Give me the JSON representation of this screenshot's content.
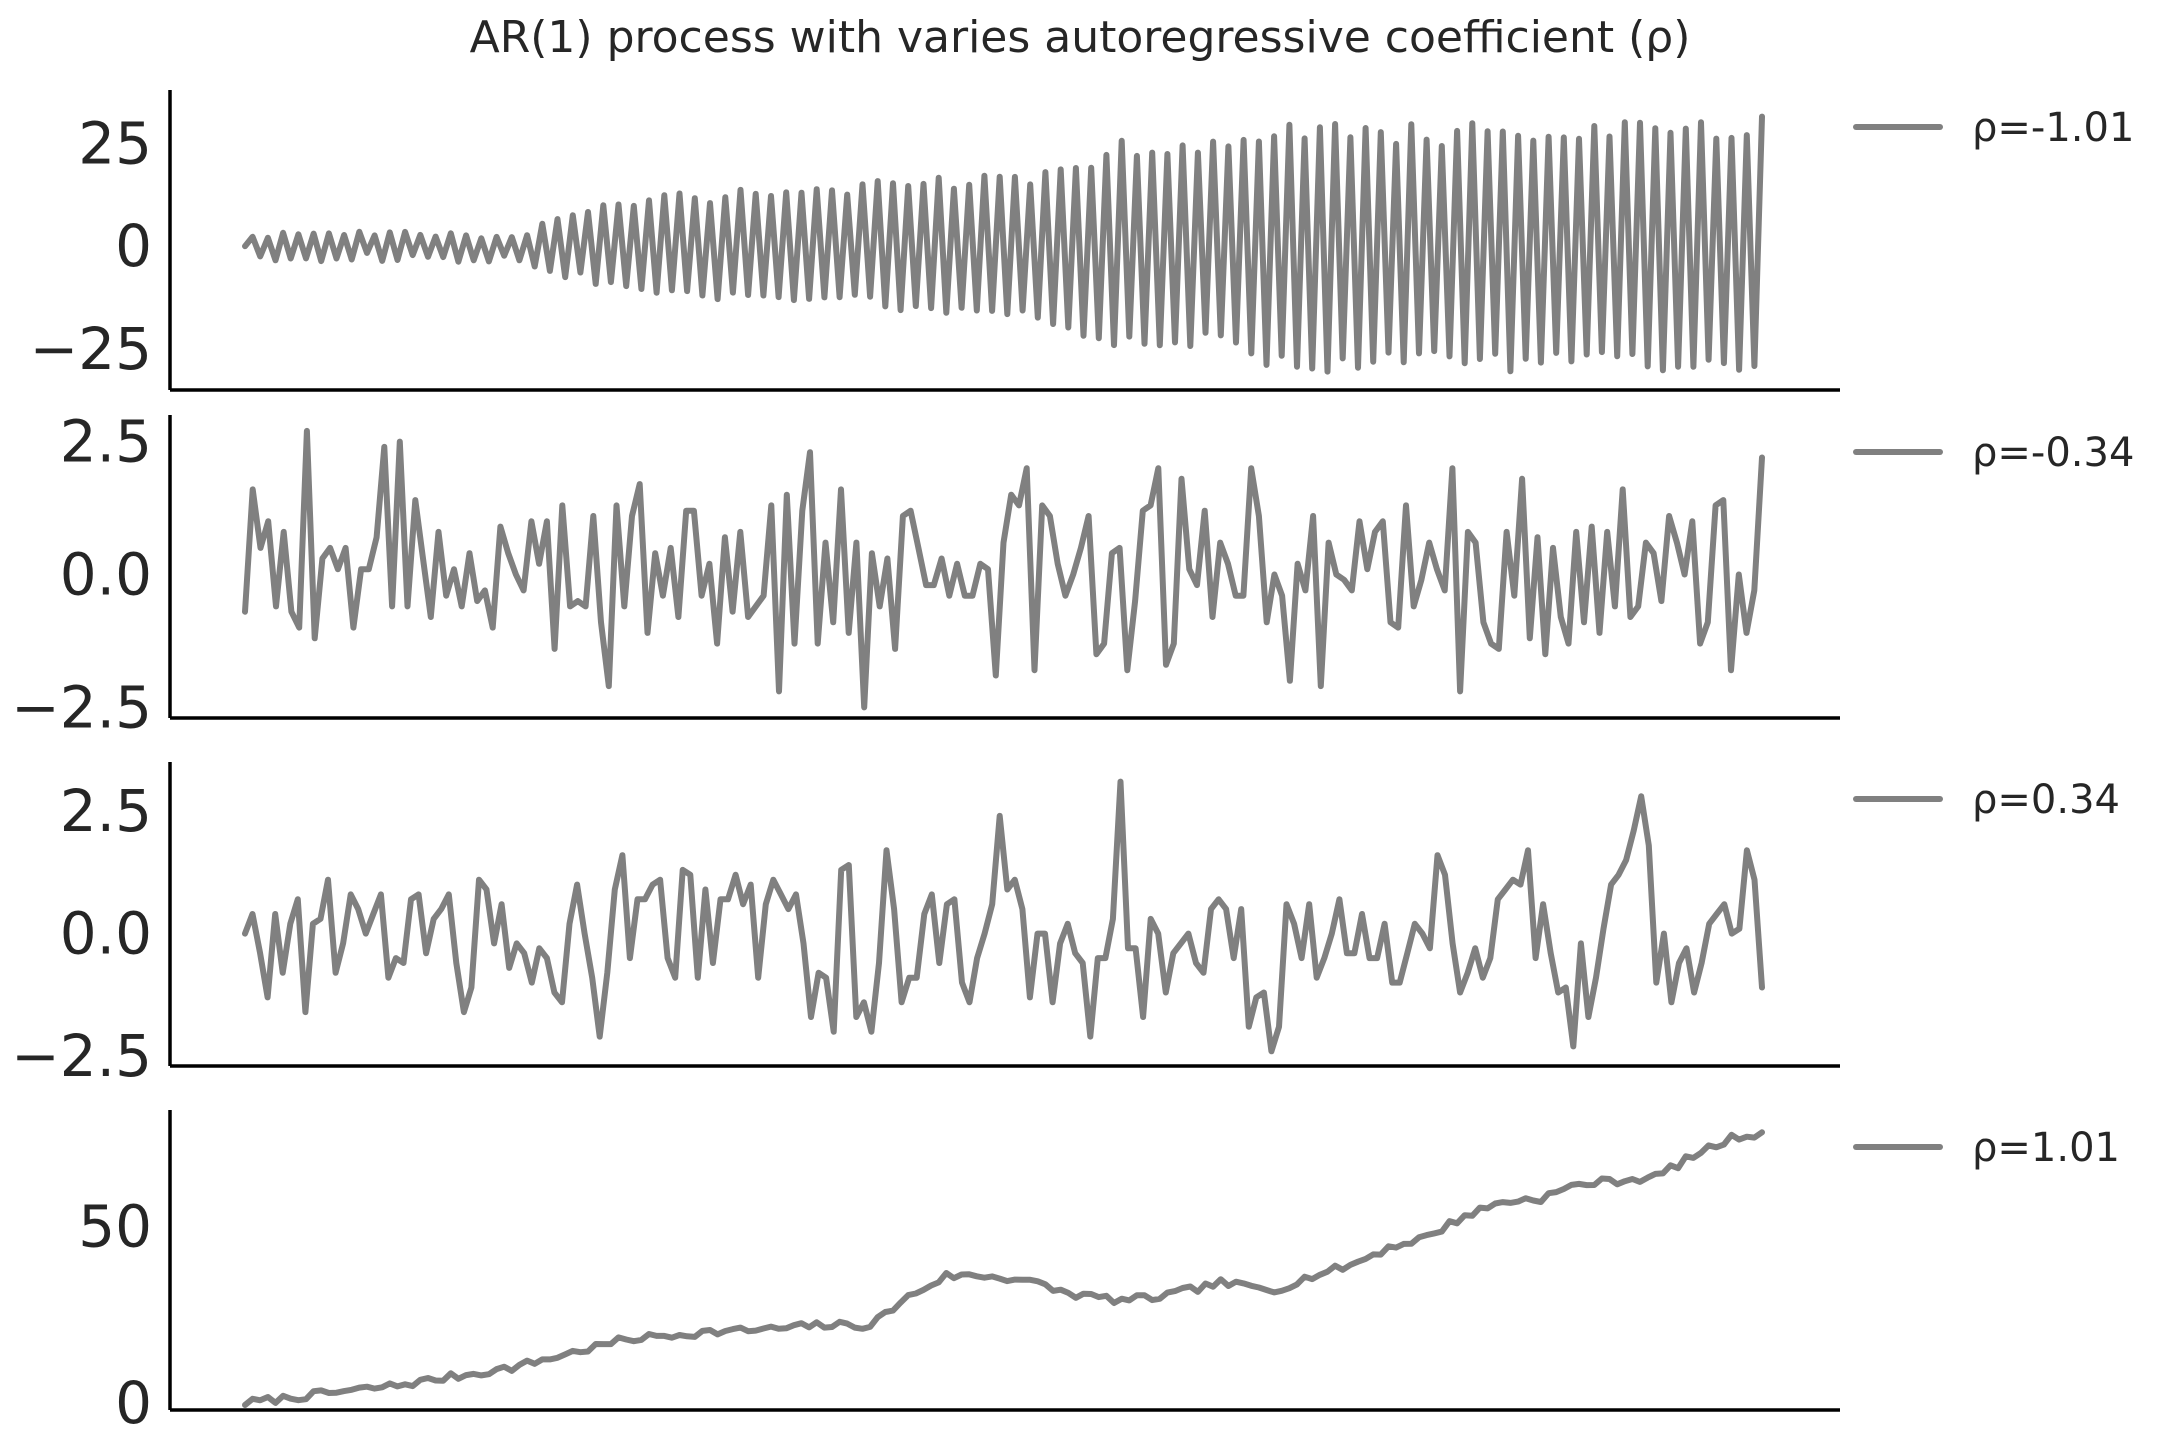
{
  "chart_data": {
    "title": "AR(1) process with varies autoregressive coefficient (ρ)",
    "type": "line",
    "line_color": "#808080",
    "grid": false,
    "legend_placement": "right of each panel",
    "panels": [
      {
        "rho": -1.01,
        "legend": "ρ=-1.01",
        "ylim": [
          -35,
          38
        ],
        "yticks": [
          25,
          0,
          -25
        ],
        "ytick_labels": [
          "25",
          "0",
          "−25"
        ],
        "envelope": [
          [
            0,
            3
          ],
          [
            20,
            3
          ],
          [
            35,
            3
          ],
          [
            38,
            6
          ],
          [
            45,
            10
          ],
          [
            55,
            13
          ],
          [
            75,
            14
          ],
          [
            82,
            16
          ],
          [
            100,
            19
          ],
          [
            110,
            25
          ],
          [
            120,
            25
          ],
          [
            125,
            28
          ],
          [
            135,
            31
          ],
          [
            150,
            29
          ],
          [
            155,
            30
          ],
          [
            165,
            29
          ],
          [
            175,
            30
          ],
          [
            181,
            31
          ],
          [
            190,
            31
          ]
        ],
        "noise_seed": 11
      },
      {
        "rho": -0.34,
        "legend": "ρ=-0.34",
        "ylim": [
          -2.7,
          3.0
        ],
        "yticks": [
          2.5,
          0.0,
          -2.5
        ],
        "ytick_labels": [
          "2.5",
          "0.0",
          "−2.5"
        ],
        "y": [
          -0.7,
          1.6,
          0.5,
          1.0,
          -0.6,
          0.8,
          -0.7,
          -1.0,
          2.7,
          -1.2,
          0.3,
          0.5,
          0.1,
          0.5,
          -1.0,
          0.1,
          0.1,
          0.7,
          2.4,
          -0.6,
          2.5,
          -0.6,
          1.4,
          0.3,
          -0.8,
          0.8,
          -0.4,
          0.1,
          -0.6,
          0.4,
          -0.5,
          -0.3,
          -1.0,
          0.9,
          0.4,
          0.0,
          -0.3,
          1.0,
          0.2,
          1.0,
          -1.4,
          1.3,
          -0.6,
          -0.5,
          -0.6,
          1.1,
          -0.9,
          -2.1,
          1.3,
          -0.6,
          1.1,
          1.7,
          -1.1,
          0.4,
          -0.4,
          0.5,
          -0.8,
          1.2,
          1.2,
          -0.4,
          0.2,
          -1.3,
          0.7,
          -0.7,
          0.8,
          -0.8,
          -0.6,
          -0.4,
          1.3,
          -2.2,
          1.5,
          -1.3,
          1.2,
          2.3,
          -1.3,
          0.6,
          -0.9,
          1.6,
          -1.1,
          0.6,
          -2.5,
          0.4,
          -0.6,
          0.3,
          -1.4,
          1.1,
          1.2,
          0.5,
          -0.2,
          -0.2,
          0.3,
          -0.4,
          0.2,
          -0.4,
          -0.4,
          0.2,
          0.1,
          -1.9,
          0.6,
          1.5,
          1.3,
          2.0,
          -1.8,
          1.3,
          1.1,
          0.2,
          -0.4,
          0.0,
          0.5,
          1.1,
          -1.5,
          -1.3,
          0.4,
          0.5,
          -1.8,
          -0.5,
          1.2,
          1.3,
          2.0,
          -1.7,
          -1.3,
          1.8,
          0.1,
          -0.2,
          1.2,
          -0.8,
          0.6,
          0.2,
          -0.4,
          -0.4,
          2.0,
          1.1,
          -0.9,
          0.0,
          -0.4,
          -2.0,
          0.2,
          -0.3,
          1.1,
          -2.1,
          0.6,
          0.0,
          -0.1,
          -0.3,
          1.0,
          0.1,
          0.8,
          1.0,
          -0.9,
          -1.0,
          1.3,
          -0.6,
          -0.1,
          0.6,
          0.1,
          -0.3,
          2.0,
          -2.2,
          0.8,
          0.6,
          -0.9,
          -1.3,
          -1.4,
          0.8,
          -0.4,
          1.8,
          -1.2,
          0.7,
          -1.5,
          0.5,
          -0.8,
          -1.3,
          0.8,
          -0.9,
          0.9,
          -1.1,
          0.8,
          -0.6,
          1.6,
          -0.8,
          -0.6,
          0.6,
          0.4,
          -0.5,
          1.1,
          0.6,
          0.0,
          1.0,
          -1.3,
          -0.9,
          1.3,
          1.4,
          -1.8,
          0.0,
          -1.1,
          -0.3,
          2.2
        ]
      },
      {
        "rho": 0.34,
        "legend": "ρ=0.34",
        "ylim": [
          -2.7,
          3.5
        ],
        "yticks": [
          2.5,
          0.0,
          -2.5
        ],
        "ytick_labels": [
          "2.5",
          "0.0",
          "−2.5"
        ],
        "y": [
          0.0,
          0.4,
          -0.4,
          -1.3,
          0.4,
          -0.8,
          0.2,
          0.7,
          -1.6,
          0.2,
          0.3,
          1.1,
          -0.8,
          -0.2,
          0.8,
          0.5,
          0.0,
          0.4,
          0.8,
          -0.9,
          -0.5,
          -0.6,
          0.7,
          0.8,
          -0.4,
          0.3,
          0.5,
          0.8,
          -0.6,
          -1.6,
          -1.1,
          1.1,
          0.9,
          -0.2,
          0.6,
          -0.7,
          -0.2,
          -0.4,
          -1.0,
          -0.3,
          -0.5,
          -1.2,
          -1.4,
          0.2,
          1.0,
          0.0,
          -0.9,
          -2.1,
          -0.8,
          0.9,
          1.6,
          -0.5,
          0.7,
          0.7,
          1.0,
          1.1,
          -0.5,
          -0.9,
          1.3,
          1.2,
          -0.9,
          0.9,
          -0.6,
          0.7,
          0.7,
          1.2,
          0.6,
          1.0,
          -0.9,
          0.6,
          1.1,
          0.8,
          0.5,
          0.8,
          -0.2,
          -1.7,
          -0.8,
          -0.9,
          -2.0,
          1.3,
          1.4,
          -1.7,
          -1.4,
          -2.0,
          -0.6,
          1.7,
          0.5,
          -1.4,
          -0.9,
          -0.9,
          0.4,
          0.8,
          -0.6,
          0.6,
          0.7,
          -1.0,
          -1.4,
          -0.5,
          0.0,
          0.6,
          2.4,
          0.9,
          1.1,
          0.5,
          -1.3,
          0.0,
          0.0,
          -1.4,
          -0.2,
          0.2,
          -0.4,
          -0.6,
          -2.1,
          -0.5,
          -0.5,
          0.3,
          3.1,
          -0.3,
          -0.3,
          -1.7,
          0.3,
          0.0,
          -1.2,
          -0.4,
          -0.2,
          0.0,
          -0.6,
          -0.8,
          0.5,
          0.7,
          0.5,
          -0.5,
          0.5,
          -1.9,
          -1.3,
          -1.2,
          -2.4,
          -1.9,
          0.6,
          0.2,
          -0.5,
          0.6,
          -0.9,
          -0.5,
          0.0,
          0.7,
          -0.4,
          -0.4,
          0.4,
          -0.5,
          -0.5,
          0.2,
          -1.0,
          -1.0,
          -0.4,
          0.2,
          0.0,
          -0.3,
          1.6,
          1.2,
          -0.2,
          -1.2,
          -0.8,
          -0.3,
          -0.9,
          -0.5,
          0.7,
          0.9,
          1.1,
          1.0,
          1.7,
          -0.5,
          0.6,
          -0.4,
          -1.2,
          -1.1,
          -2.3,
          -0.2,
          -1.7,
          -0.9,
          0.1,
          1.0,
          1.2,
          1.5,
          2.1,
          2.8,
          1.8,
          -1.0,
          0.0,
          -1.4,
          -0.6,
          -0.3,
          -1.2,
          -0.6,
          0.2,
          0.4,
          0.6,
          0.0,
          0.1,
          1.7,
          1.1,
          -1.1
        ]
      },
      {
        "rho": 1.01,
        "legend": "ρ=1.01",
        "ylim": [
          -2,
          83
        ],
        "yticks": [
          50,
          0
        ],
        "ytick_labels": [
          "50",
          "0"
        ],
        "trend": [
          [
            0,
            0
          ],
          [
            20,
            5
          ],
          [
            35,
            10
          ],
          [
            50,
            18
          ],
          [
            60,
            20
          ],
          [
            70,
            21
          ],
          [
            75,
            22
          ],
          [
            82,
            22
          ],
          [
            87,
            30
          ],
          [
            92,
            36
          ],
          [
            97,
            36
          ],
          [
            102,
            35
          ],
          [
            108,
            31
          ],
          [
            115,
            29
          ],
          [
            120,
            30
          ],
          [
            128,
            34
          ],
          [
            135,
            32
          ],
          [
            140,
            36
          ],
          [
            145,
            39
          ],
          [
            150,
            44
          ],
          [
            155,
            47
          ],
          [
            160,
            53
          ],
          [
            165,
            57
          ],
          [
            170,
            58
          ],
          [
            175,
            62
          ],
          [
            180,
            63
          ],
          [
            185,
            64
          ],
          [
            190,
            70
          ],
          [
            195,
            75
          ],
          [
            200,
            77
          ]
        ],
        "noise_seed": 7
      }
    ]
  }
}
